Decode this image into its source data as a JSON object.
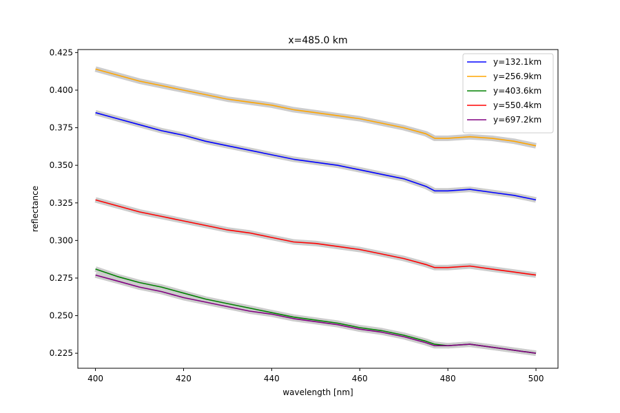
{
  "chart_data": {
    "type": "line",
    "title": "x=485.0 km",
    "xlabel": "wavelength [nm]",
    "ylabel": "reflectance",
    "xlim": [
      396,
      505
    ],
    "ylim": [
      0.215,
      0.427
    ],
    "xticks": [
      400,
      420,
      440,
      460,
      480,
      500
    ],
    "xtick_labels": [
      "400",
      "420",
      "440",
      "460",
      "480",
      "500"
    ],
    "yticks": [
      0.225,
      0.25,
      0.275,
      0.3,
      0.325,
      0.35,
      0.375,
      0.4,
      0.425
    ],
    "ytick_labels": [
      "0.225",
      "0.250",
      "0.275",
      "0.300",
      "0.325",
      "0.350",
      "0.375",
      "0.400",
      "0.425"
    ],
    "grid": false,
    "legend_position": "top-right",
    "band_color": "#cccccc",
    "x": [
      400,
      405,
      410,
      415,
      420,
      425,
      430,
      435,
      440,
      445,
      450,
      455,
      460,
      465,
      470,
      475,
      477,
      480,
      485,
      490,
      495,
      500
    ],
    "series": [
      {
        "name": "y=132.1km",
        "color": "#0000ff",
        "values": [
          0.385,
          0.381,
          0.377,
          0.373,
          0.37,
          0.366,
          0.363,
          0.36,
          0.357,
          0.354,
          0.352,
          0.35,
          0.347,
          0.344,
          0.341,
          0.336,
          0.333,
          0.333,
          0.334,
          0.332,
          0.33,
          0.327
        ]
      },
      {
        "name": "y=256.9km",
        "color": "#ffa500",
        "values": [
          0.414,
          0.41,
          0.406,
          0.403,
          0.4,
          0.397,
          0.394,
          0.392,
          0.39,
          0.387,
          0.385,
          0.383,
          0.381,
          0.378,
          0.375,
          0.371,
          0.368,
          0.368,
          0.369,
          0.368,
          0.366,
          0.363
        ]
      },
      {
        "name": "y=403.6km",
        "color": "#008000",
        "values": [
          0.281,
          0.276,
          0.272,
          0.269,
          0.265,
          0.261,
          0.258,
          0.255,
          0.252,
          0.249,
          0.247,
          0.245,
          0.242,
          0.24,
          0.237,
          0.233,
          0.231,
          0.23,
          0.231,
          0.229,
          0.227,
          0.225
        ]
      },
      {
        "name": "y=550.4km",
        "color": "#ff0000",
        "values": [
          0.327,
          0.323,
          0.319,
          0.316,
          0.313,
          0.31,
          0.307,
          0.305,
          0.302,
          0.299,
          0.298,
          0.296,
          0.294,
          0.291,
          0.288,
          0.284,
          0.282,
          0.282,
          0.283,
          0.281,
          0.279,
          0.277
        ]
      },
      {
        "name": "y=697.2km",
        "color": "#800080",
        "values": [
          0.277,
          0.273,
          0.269,
          0.266,
          0.262,
          0.259,
          0.256,
          0.253,
          0.251,
          0.248,
          0.246,
          0.244,
          0.241,
          0.239,
          0.236,
          0.232,
          0.23,
          0.23,
          0.231,
          0.229,
          0.227,
          0.225
        ]
      }
    ]
  }
}
